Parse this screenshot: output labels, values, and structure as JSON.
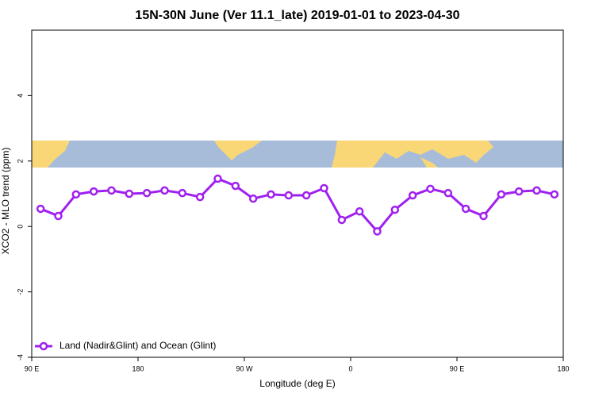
{
  "chart_data": {
    "type": "line",
    "title": "15N-30N June (Ver 11.1_late)   2019-01-01 to 2023-04-30",
    "x_label": "Longitude (deg E)",
    "y_label": "XCO2 - MLO trend (ppm)",
    "x": [
      97.5,
      112.5,
      127.5,
      142.5,
      157.5,
      172.5,
      187.5,
      202.5,
      217.5,
      232.5,
      247.5,
      262.5,
      277.5,
      292.5,
      307.5,
      322.5,
      337.5,
      352.5,
      367.5,
      382.5,
      397.5,
      412.5,
      427.5,
      442.5,
      457.5,
      472.5,
      487.5,
      502.5,
      517.5,
      532.5
    ],
    "series": [
      {
        "name": "Land (Nadir&Glint) and Ocean (Glint)",
        "color": "#a020f0",
        "values": [
          0.54,
          0.32,
          0.98,
          1.07,
          1.1,
          1.0,
          1.02,
          1.1,
          1.02,
          0.9,
          1.46,
          1.24,
          0.85,
          0.98,
          0.95,
          0.95,
          1.17,
          0.2,
          0.46,
          -0.15,
          0.51,
          0.95,
          1.15,
          1.02,
          0.54,
          0.32,
          0.98,
          1.07,
          1.1,
          0.98
        ]
      }
    ],
    "xlim": [
      90,
      540
    ],
    "xticks": [
      {
        "value": 90,
        "label": "90 E"
      },
      {
        "value": 180,
        "label": "180"
      },
      {
        "value": 270,
        "label": "90 W"
      },
      {
        "value": 360,
        "label": "0"
      },
      {
        "value": 450,
        "label": "90 E"
      },
      {
        "value": 540,
        "label": "180"
      }
    ],
    "ylim": [
      -4,
      6
    ],
    "yticks": [
      -4,
      -2,
      0,
      2,
      4
    ],
    "grid": false,
    "legend": "bottom-left"
  }
}
